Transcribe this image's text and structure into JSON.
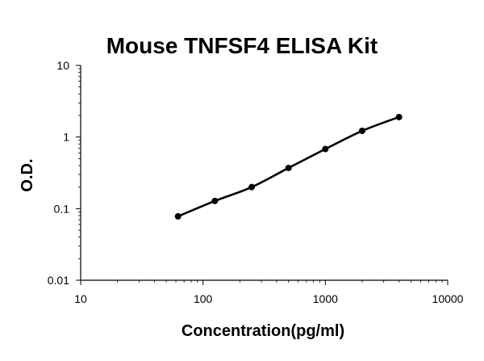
{
  "chart_data": {
    "type": "scatter",
    "title": "Mouse TNFSF4 ELISA Kit",
    "xlabel": "Concentration(pg/ml)",
    "ylabel": "O.D.",
    "xscale": "log",
    "yscale": "log",
    "xlim": [
      10,
      10000
    ],
    "ylim": [
      0.01,
      10
    ],
    "xticks": [
      "10",
      "100",
      "1000",
      "10000"
    ],
    "yticks": [
      "0.01",
      "0.1",
      "1",
      "10"
    ],
    "grid": false,
    "series": [
      {
        "x": [
          62.5,
          125,
          250,
          500,
          1000,
          2000,
          4000
        ],
        "y": [
          0.078,
          0.128,
          0.2,
          0.37,
          0.68,
          1.22,
          1.9
        ],
        "line": "smooth"
      }
    ],
    "colors": {
      "curve": "#000000",
      "points": "#000000",
      "axis": "#000000"
    }
  }
}
